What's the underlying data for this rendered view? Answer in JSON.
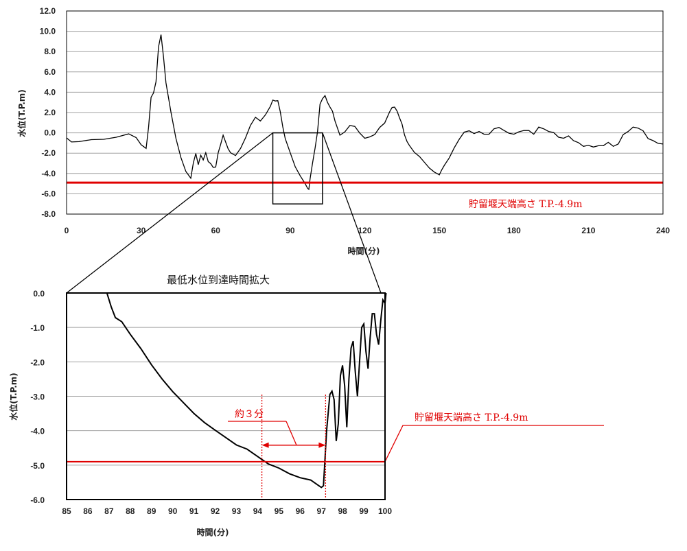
{
  "colors": {
    "series": "#000000",
    "threshold": "#e00000",
    "grid": "#a0a0a0",
    "frame": "#000000"
  },
  "chart_data": [
    {
      "type": "line",
      "title": "",
      "xlabel": "時間(分)",
      "ylabel": "水位(T.P.m)",
      "xlim": [
        0,
        240
      ],
      "ylim": [
        -8.0,
        12.0
      ],
      "xticks": [
        "0",
        "30",
        "60",
        "90",
        "120",
        "150",
        "180",
        "210",
        "240"
      ],
      "yticks": [
        "12.0",
        "10.0",
        "8.0",
        "6.0",
        "4.0",
        "2.0",
        "0.0",
        "-2.0",
        "-4.0",
        "-6.0",
        "-8.0"
      ],
      "grid": "horizontal",
      "series": [
        {
          "x": [
            0,
            2,
            5,
            10,
            15,
            20,
            25,
            28,
            30,
            32,
            33,
            34,
            35,
            36,
            37,
            38,
            39,
            40,
            42,
            44,
            46,
            48,
            50,
            51,
            52,
            53,
            54,
            55,
            56,
            57,
            58,
            59,
            60,
            61,
            62,
            63,
            64,
            65,
            66,
            68,
            70,
            72,
            74,
            76,
            78,
            80,
            82,
            83,
            84,
            85,
            86,
            87,
            88,
            90,
            92,
            94,
            96,
            97,
            97.5,
            98,
            99,
            100,
            101,
            102,
            103,
            104,
            105,
            106,
            107,
            108,
            110,
            112,
            114,
            116,
            118,
            120,
            122,
            124,
            126,
            128,
            130,
            131,
            132,
            133,
            134,
            135,
            136,
            137,
            138,
            140,
            142,
            144,
            146,
            148,
            150,
            151,
            152,
            154,
            156,
            158,
            160,
            162,
            164,
            166,
            168,
            170,
            172,
            174,
            176,
            178,
            180,
            182,
            184,
            186,
            188,
            190,
            192,
            194,
            196,
            198,
            200,
            202,
            204,
            206,
            208,
            210,
            212,
            214,
            216,
            218,
            220,
            222,
            224,
            226,
            228,
            230,
            232,
            234,
            236,
            238,
            240
          ],
          "y": [
            -0.5,
            -0.9,
            -0.8,
            -0.7,
            -0.6,
            -0.5,
            -0.1,
            -0.4,
            -1.2,
            -1.5,
            0.5,
            3.5,
            4.0,
            5.0,
            8.5,
            9.6,
            7.5,
            5.0,
            2.0,
            -0.5,
            -2.5,
            -3.8,
            -4.4,
            -3.0,
            -2.0,
            -3.2,
            -2.2,
            -2.6,
            -2.0,
            -2.8,
            -3.1,
            -3.4,
            -3.3,
            -2.0,
            -1.1,
            -0.3,
            -0.9,
            -1.5,
            -2.0,
            -2.2,
            -1.6,
            -0.5,
            0.8,
            1.5,
            1.2,
            1.7,
            2.6,
            3.3,
            3.1,
            3.2,
            2.0,
            0.6,
            -0.5,
            -2.0,
            -3.3,
            -4.3,
            -5.0,
            -5.4,
            -5.6,
            -4.5,
            -3.0,
            -1.5,
            0.2,
            2.8,
            3.4,
            3.6,
            3.0,
            2.6,
            2.1,
            1.2,
            -0.3,
            0.1,
            0.8,
            0.6,
            0.0,
            -0.6,
            -0.4,
            -0.1,
            0.5,
            1.0,
            2.0,
            2.5,
            2.6,
            2.1,
            1.5,
            0.8,
            -0.2,
            -0.8,
            -1.3,
            -1.9,
            -2.4,
            -2.9,
            -3.4,
            -3.9,
            -4.1,
            -3.7,
            -3.2,
            -2.4,
            -1.5,
            -0.6,
            0.0,
            0.2,
            0.0,
            0.1,
            -0.1,
            -0.2,
            0.4,
            0.6,
            0.2,
            0.0,
            -0.2,
            0.1,
            0.3,
            0.2,
            -0.1,
            0.5,
            0.4,
            0.2,
            0.0,
            -0.4,
            -0.6,
            -0.3,
            -0.7,
            -1.0,
            -1.3,
            -1.3,
            -1.4,
            -1.2,
            -1.3,
            -0.9,
            -1.4,
            -1.1,
            -0.1,
            0.1,
            0.6,
            0.4,
            0.2,
            -0.5,
            -0.8,
            -1.0,
            -1.1
          ]
        }
      ],
      "hline": {
        "y": -4.9,
        "label": "貯留堰天端高さ T.P.-4.9m"
      },
      "zoom_box": {
        "xlim": [
          83,
          103
        ],
        "ylim": [
          -7.0,
          0.0
        ]
      }
    },
    {
      "type": "line",
      "title": "最低水位到達時間拡大",
      "xlabel": "時間(分)",
      "ylabel": "水位(T.P.m)",
      "xlim": [
        85,
        100
      ],
      "ylim": [
        -6.0,
        0.0
      ],
      "xticks": [
        "85",
        "86",
        "87",
        "88",
        "89",
        "90",
        "91",
        "92",
        "93",
        "94",
        "95",
        "96",
        "97",
        "98",
        "99",
        "100"
      ],
      "yticks": [
        "0.0",
        "-1.0",
        "-2.0",
        "-3.0",
        "-4.0",
        "-5.0",
        "-6.0"
      ],
      "grid": "horizontal",
      "series": [
        {
          "x": [
            86.9,
            87.1,
            87.3,
            87.6,
            88.0,
            88.5,
            89.0,
            89.5,
            90.0,
            90.5,
            91.0,
            91.5,
            92.0,
            92.5,
            93.0,
            93.5,
            94.0,
            94.5,
            95.0,
            95.5,
            96.0,
            96.5,
            97.0,
            97.1,
            97.25,
            97.4,
            97.5,
            97.6,
            97.7,
            97.8,
            97.9,
            98.0,
            98.1,
            98.2,
            98.3,
            98.4,
            98.5,
            98.6,
            98.7,
            98.8,
            98.9,
            99.0,
            99.1,
            99.2,
            99.3,
            99.4,
            99.5,
            99.6,
            99.7,
            99.8,
            99.9,
            100.0,
            100.05
          ],
          "y": [
            0.0,
            -0.4,
            -0.7,
            -0.85,
            -1.2,
            -1.6,
            -2.1,
            -2.5,
            -2.85,
            -3.2,
            -3.5,
            -3.75,
            -4.0,
            -4.2,
            -4.4,
            -4.55,
            -4.75,
            -4.95,
            -5.1,
            -5.25,
            -5.35,
            -5.45,
            -5.65,
            -5.6,
            -4.0,
            -2.95,
            -2.85,
            -3.1,
            -4.3,
            -3.8,
            -2.4,
            -2.1,
            -2.7,
            -3.9,
            -2.5,
            -1.6,
            -1.4,
            -2.3,
            -3.0,
            -2.0,
            -1.0,
            -0.9,
            -1.7,
            -2.2,
            -1.3,
            -0.6,
            -0.6,
            -1.2,
            -1.5,
            -0.8,
            -0.2,
            -0.3,
            0.0
          ]
        }
      ],
      "hline": {
        "y": -4.9,
        "label": "貯留堰天端高さ T.P.-4.9m"
      },
      "annotation": {
        "text": "約３分",
        "x_from": 94.2,
        "x_to": 97.2
      }
    }
  ]
}
